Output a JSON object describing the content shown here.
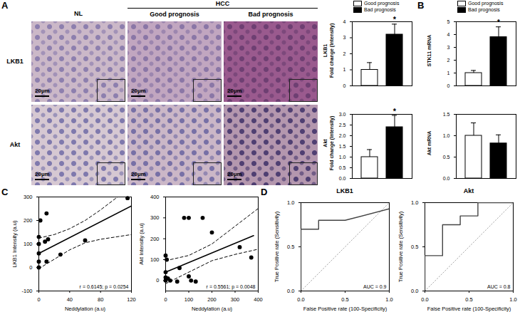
{
  "figure": {
    "panel_labels": [
      "A",
      "B",
      "C",
      "D"
    ],
    "micrographs": {
      "columns": [
        "NL",
        "Good prognosis",
        "Bad prognosis"
      ],
      "group_label": "HCC",
      "rows": [
        "LKB1",
        "Akt"
      ],
      "scale_bar": "20µm"
    }
  },
  "chart_data": [
    {
      "type": "bar",
      "title": "LKB1",
      "y_label": "Fold change (Intensity)",
      "categories": [
        "Good prognosis",
        "Bad prognosis"
      ],
      "values": [
        1.0,
        3.2
      ],
      "errors": [
        0.45,
        0.65
      ],
      "colors": [
        "#ffffff",
        "#000000"
      ],
      "ylim": [
        0,
        4
      ],
      "yticks": [
        0,
        1,
        2,
        3,
        4
      ],
      "legend": "top",
      "tick_labels": "y",
      "annotations": [
        {
          "category": "Bad prognosis",
          "text": "*"
        }
      ]
    },
    {
      "type": "bar",
      "title": "Akt",
      "y_label": "Fold change (Intensity)",
      "categories": [
        "Good prognosis",
        "Bad prognosis"
      ],
      "values": [
        1.0,
        2.4
      ],
      "errors": [
        0.35,
        0.55
      ],
      "colors": [
        "#ffffff",
        "#000000"
      ],
      "ylim": [
        0,
        3
      ],
      "yticks": [
        {
          "value": 0,
          "label": "0.0"
        },
        {
          "value": 0.5,
          "label": "0.5"
        },
        {
          "value": 1,
          "label": "1.0"
        },
        {
          "value": 1.5,
          "label": "1.5"
        },
        {
          "value": 2,
          "label": "2.0"
        },
        {
          "value": 2.5,
          "label": "2.5"
        },
        {
          "value": 3,
          "label": "3.0"
        }
      ],
      "tick_labels": "y",
      "annotations": [
        {
          "category": "Bad prognosis",
          "text": "*"
        }
      ]
    },
    {
      "type": "bar",
      "y_label": "STK11 mRNA",
      "categories": [
        "Good prognosis",
        "Bad prognosis"
      ],
      "values": [
        1.0,
        3.8
      ],
      "errors": [
        0.2,
        0.8
      ],
      "colors": [
        "#ffffff",
        "#000000"
      ],
      "ylim": [
        0,
        5
      ],
      "yticks": [
        0,
        1,
        2,
        3,
        4,
        5
      ],
      "legend": "top",
      "tick_labels": "y",
      "annotations": [
        {
          "category": "Bad prognosis",
          "text": "*"
        }
      ]
    },
    {
      "type": "bar",
      "y_label": "Akt mRNA",
      "categories": [
        "Good prognosis",
        "Bad prognosis"
      ],
      "values": [
        1.0,
        0.82
      ],
      "errors": [
        0.3,
        0.2
      ],
      "colors": [
        "#ffffff",
        "#000000"
      ],
      "ylim": [
        0,
        1.5
      ],
      "yticks": [
        {
          "value": 0,
          "label": "0.0"
        },
        {
          "value": 0.5,
          "label": "0.5"
        },
        {
          "value": 1,
          "label": "1.0"
        },
        {
          "value": 1.5,
          "label": "1.5"
        }
      ],
      "tick_labels": "y"
    },
    {
      "type": "scatter",
      "x_label": "Neddylation (a.u)",
      "y_label": "LKB1 Intensity (a.u)",
      "x": [
        0,
        0,
        0,
        0,
        0,
        2,
        8,
        10,
        10,
        12,
        28,
        60,
        115
      ],
      "values": [
        0,
        25,
        60,
        100,
        130,
        200,
        110,
        230,
        25,
        120,
        55,
        115,
        295
      ],
      "color": "#000000",
      "marker": "circle",
      "xlim": [
        0,
        120
      ],
      "xticks": [
        0,
        40,
        80,
        120
      ],
      "ylim": [
        -100,
        300
      ],
      "yticks": [
        -100,
        0,
        100,
        200,
        300
      ],
      "fit": {
        "x": [
          0,
          120
        ],
        "values": [
          60,
          262
        ],
        "line_style": "solid"
      },
      "ci_upper": {
        "x": [
          0,
          20,
          40,
          60,
          80,
          100,
          120
        ],
        "values": [
          125,
          140,
          165,
          200,
          245,
          295,
          345
        ],
        "line_style": "dashed"
      },
      "ci_lower": {
        "x": [
          0,
          20,
          40,
          60,
          80,
          100,
          120
        ],
        "values": [
          -5,
          35,
          75,
          105,
          120,
          130,
          140
        ],
        "line_style": "dashed"
      },
      "annotation": "r = 0.6145; p = 0.0254"
    },
    {
      "type": "scatter",
      "x_label": "Neddylation (a.u)",
      "y_label": "Akt Intensity (a.u)",
      "x": [
        0,
        0,
        0,
        0,
        5,
        10,
        20,
        50,
        60,
        80,
        100,
        100,
        110,
        130,
        160,
        200,
        320,
        370
      ],
      "values": [
        0,
        15,
        40,
        120,
        100,
        10,
        0,
        -5,
        60,
        300,
        20,
        300,
        0,
        -5,
        300,
        230,
        160,
        110
      ],
      "color": "#000000",
      "marker": "circle",
      "xlim": [
        0,
        400
      ],
      "xticks": [
        0,
        100,
        200,
        300,
        400
      ],
      "ylim": [
        -50,
        400
      ],
      "yticks": [
        0,
        100,
        200,
        300,
        400
      ],
      "fit": {
        "x": [
          0,
          380
        ],
        "values": [
          40,
          215
        ],
        "line_style": "solid"
      },
      "ci_upper": {
        "x": [
          0,
          100,
          200,
          300,
          400
        ],
        "values": [
          95,
          120,
          175,
          260,
          345
        ],
        "line_style": "dashed"
      },
      "ci_lower": {
        "x": [
          0,
          100,
          200,
          300,
          400
        ],
        "values": [
          -15,
          40,
          95,
          125,
          150
        ],
        "line_style": "dashed"
      },
      "annotation": "r = 0.5561; p = 0.0048"
    },
    {
      "type": "line",
      "title": "LKB1",
      "x_label": "False Positive rate (100-Specificity)",
      "y_label": "True Positive rate (Sensitivity)",
      "x": [
        0,
        0,
        0.2,
        0.2,
        0.5,
        1.0
      ],
      "values": [
        0,
        0.7,
        0.7,
        0.8,
        0.8,
        0.93
      ],
      "color": "#444444",
      "xlim": [
        0,
        1
      ],
      "xticks": [
        {
          "value": 0,
          "label": "0.0"
        },
        {
          "value": 0.5,
          "label": "0.5"
        },
        {
          "value": 1,
          "label": "1.0"
        }
      ],
      "ylim": [
        0,
        1
      ],
      "yticks": [
        {
          "value": 0,
          "label": "0.0"
        },
        {
          "value": 0.5,
          "label": "0.5"
        },
        {
          "value": 1,
          "label": "1.0"
        }
      ],
      "reference_line": {
        "x": [
          0,
          1
        ],
        "values": [
          0,
          1
        ],
        "color": "#aaaaaa",
        "line_style": "dotted"
      },
      "annotation": "AUC = 0.9"
    },
    {
      "type": "line",
      "title": "Akt",
      "x_label": "False Positive rate (100-Specificity)",
      "y_label": "True Positive rate (Sensitivity)",
      "x": [
        0,
        0,
        0.2,
        0.2,
        0.4,
        0.4,
        0.6,
        0.6,
        1.0
      ],
      "values": [
        0,
        0.4,
        0.4,
        0.75,
        0.75,
        0.85,
        0.85,
        1.0,
        1.0
      ],
      "color": "#444444",
      "xlim": [
        0,
        1
      ],
      "xticks": [
        {
          "value": 0,
          "label": "0.0"
        },
        {
          "value": 0.5,
          "label": "0.5"
        },
        {
          "value": 1,
          "label": "1.0"
        }
      ],
      "ylim": [
        0,
        1
      ],
      "yticks": [
        {
          "value": 0,
          "label": "0.0"
        },
        {
          "value": 0.5,
          "label": "0.5"
        },
        {
          "value": 1,
          "label": "1.0"
        }
      ],
      "reference_line": {
        "x": [
          0,
          1
        ],
        "values": [
          0,
          1
        ],
        "color": "#aaaaaa",
        "line_style": "dotted"
      },
      "annotation": "AUC = 0.8"
    }
  ]
}
